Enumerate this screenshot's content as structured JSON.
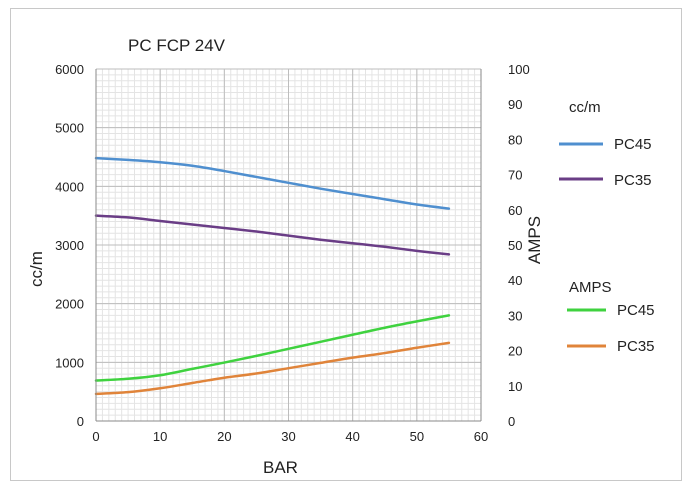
{
  "chart_data": {
    "type": "line",
    "title": "PC FCP 24V",
    "xlabel": "BAR",
    "ylabel": "cc/m",
    "y2label": "AMPS",
    "xlim": [
      0,
      60
    ],
    "ylim": [
      0,
      6000
    ],
    "y2lim": [
      0,
      100
    ],
    "xticks": [
      "0",
      "10",
      "20",
      "30",
      "40",
      "50",
      "60"
    ],
    "yticks": [
      "0",
      "1000",
      "2000",
      "3000",
      "4000",
      "5000",
      "6000"
    ],
    "y2ticks": [
      "0",
      "10",
      "20",
      "30",
      "40",
      "50",
      "60",
      "70",
      "80",
      "90",
      "100"
    ],
    "grid": true,
    "legend_position": "right",
    "legend_groups": [
      {
        "title": "cc/m",
        "entries": [
          {
            "name": "PC45",
            "color": "#4f8fcf"
          },
          {
            "name": "PC35",
            "color": "#6a3d86"
          }
        ]
      },
      {
        "title": "AMPS",
        "entries": [
          {
            "name": "PC45",
            "color": "#3fd23f"
          },
          {
            "name": "PC35",
            "color": "#e0843a"
          }
        ]
      }
    ],
    "series": [
      {
        "name": "PC45",
        "group": "cc/m",
        "axis": "left",
        "color": "#4f8fcf",
        "x": [
          0,
          5,
          10,
          15,
          20,
          25,
          30,
          35,
          40,
          45,
          50,
          55
        ],
        "y": [
          4480,
          4450,
          4410,
          4350,
          4260,
          4160,
          4060,
          3960,
          3870,
          3780,
          3690,
          3620
        ]
      },
      {
        "name": "PC35",
        "group": "cc/m",
        "axis": "left",
        "color": "#6a3d86",
        "x": [
          0,
          5,
          10,
          15,
          20,
          25,
          30,
          35,
          40,
          45,
          50,
          55
        ],
        "y": [
          3500,
          3470,
          3410,
          3350,
          3290,
          3230,
          3160,
          3090,
          3030,
          2970,
          2900,
          2840
        ]
      },
      {
        "name": "PC45",
        "group": "AMPS",
        "axis": "right",
        "color": "#3fd23f",
        "x": [
          0,
          5,
          10,
          15,
          20,
          25,
          30,
          35,
          40,
          45,
          50,
          55
        ],
        "y": [
          11.5,
          12,
          13,
          14.8,
          16.6,
          18.5,
          20.5,
          22.5,
          24.5,
          26.5,
          28.3,
          30
        ]
      },
      {
        "name": "PC35",
        "group": "AMPS",
        "axis": "right",
        "color": "#e0843a",
        "x": [
          0,
          5,
          10,
          15,
          20,
          25,
          30,
          35,
          40,
          45,
          50,
          55
        ],
        "y": [
          7.7,
          8.2,
          9.3,
          10.8,
          12.3,
          13.5,
          15,
          16.5,
          18,
          19.3,
          20.8,
          22.2
        ]
      }
    ]
  }
}
